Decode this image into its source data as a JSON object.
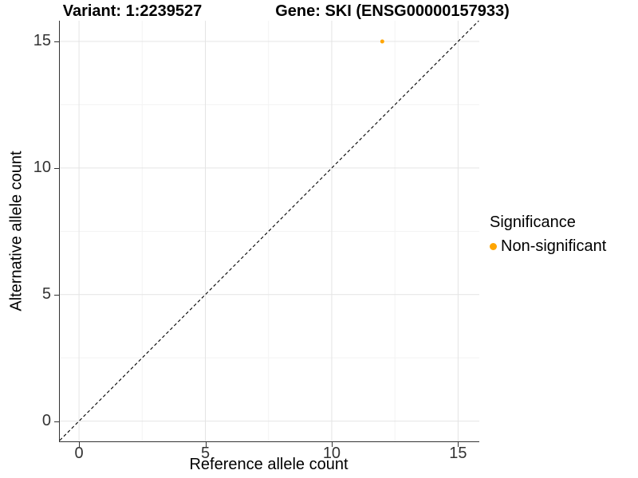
{
  "chart_data": {
    "type": "scatter",
    "title_left": "Variant: 1:2239527",
    "title_right": "Gene: SKI (ENSG00000157933)",
    "xlabel": "Reference allele count",
    "ylabel": "Alternative allele count",
    "x_ticks": [
      0,
      5,
      10,
      15
    ],
    "y_ticks": [
      0,
      5,
      10,
      15
    ],
    "x_minor_ticks": [
      2.5,
      7.5,
      12.5
    ],
    "y_minor_ticks": [
      2.5,
      7.5,
      12.5
    ],
    "xlim": [
      -0.76,
      15.84
    ],
    "ylim": [
      -0.8,
      15.82
    ],
    "grid": true,
    "reference_line": {
      "kind": "identity",
      "style": "dashed",
      "color": "#000000"
    },
    "series": [
      {
        "name": "Non-significant",
        "color": "#FFA500",
        "points": [
          {
            "x": 12,
            "y": 15
          }
        ]
      }
    ],
    "legend": {
      "title": "Significance",
      "position": "right",
      "entries": [
        {
          "label": "Non-significant",
          "color": "#FFA500"
        }
      ]
    }
  },
  "colors": {
    "background": "#FFFFFF",
    "grid_major": "#E4E4E4",
    "grid_minor": "#F3F3F3",
    "axis_line": "#333333",
    "tick_text": "#333333",
    "point": "#FFA500",
    "dashed_line": "#000000"
  }
}
